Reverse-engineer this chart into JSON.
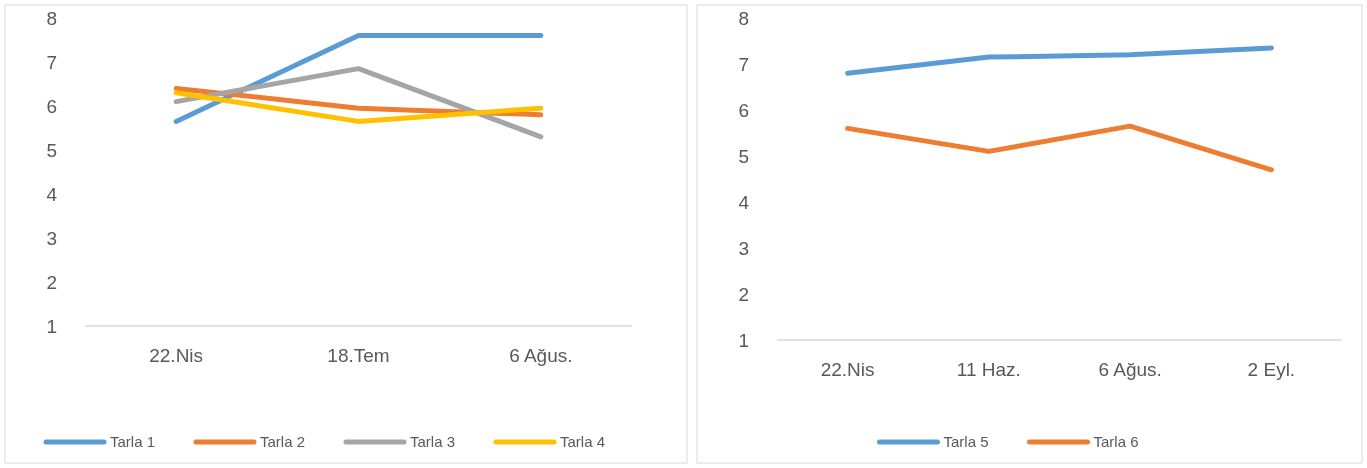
{
  "chart_data": [
    {
      "type": "line",
      "categories": [
        "22.Nis",
        "18.Tem",
        "6 Ağus."
      ],
      "ylim": [
        1,
        8
      ],
      "yticks": [
        1,
        2,
        3,
        4,
        5,
        6,
        7,
        8
      ],
      "grid": false,
      "legend": "bottom",
      "series": [
        {
          "name": "Tarla 1",
          "color": "#5b9bd5",
          "values": [
            5.65,
            7.6,
            7.6
          ]
        },
        {
          "name": "Tarla 2",
          "color": "#ed7d31",
          "values": [
            6.4,
            5.95,
            5.8
          ]
        },
        {
          "name": "Tarla 3",
          "color": "#a5a5a5",
          "values": [
            6.1,
            6.85,
            5.3
          ]
        },
        {
          "name": "Tarla 4",
          "color": "#ffc000",
          "values": [
            6.3,
            5.65,
            5.95
          ]
        }
      ]
    },
    {
      "type": "line",
      "categories": [
        "22.Nis",
        "11 Haz.",
        "6 Ağus.",
        "2 Eyl."
      ],
      "ylim": [
        1,
        8
      ],
      "yticks": [
        1,
        2,
        3,
        4,
        5,
        6,
        7,
        8
      ],
      "grid": false,
      "legend": "bottom",
      "series": [
        {
          "name": "Tarla 5",
          "color": "#5b9bd5",
          "values": [
            6.8,
            7.15,
            7.2,
            7.35
          ]
        },
        {
          "name": "Tarla 6",
          "color": "#ed7d31",
          "values": [
            5.6,
            5.1,
            5.65,
            4.7
          ]
        }
      ]
    }
  ]
}
